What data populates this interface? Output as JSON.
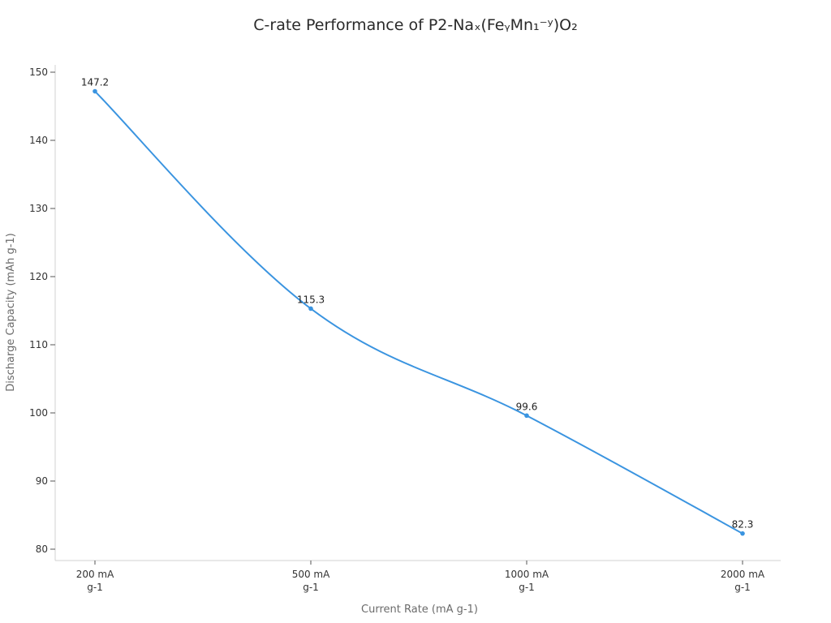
{
  "title": "C-rate Performance of P2-Naₓ(FeᵧMn₁⁻ʸ)O₂",
  "colors": {
    "line": "#3a94e0",
    "axis": "#d0d0d0",
    "tick": "#555555"
  },
  "chart_data": {
    "type": "line",
    "title": "C-rate Performance of P2-Naₓ(FeᵧMn₁⁻ʸ)O₂",
    "xlabel": "Current Rate (mA g-1)",
    "ylabel": "Discharge Capacity (mAh g-1)",
    "categories": [
      "200 mA g-1",
      "500 mA g-1",
      "1000 mA g-1",
      "2000 mA g-1"
    ],
    "category_lines": [
      [
        "200 mA",
        "g-1"
      ],
      [
        "500 mA",
        "g-1"
      ],
      [
        "1000 mA",
        "g-1"
      ],
      [
        "2000 mA",
        "g-1"
      ]
    ],
    "series": [
      {
        "name": "Discharge Capacity",
        "values": [
          147.2,
          115.3,
          99.6,
          82.3
        ]
      }
    ],
    "data_labels": [
      "147.2",
      "115.3",
      "99.6",
      "82.3"
    ],
    "yticks": [
      80,
      90,
      100,
      110,
      120,
      130,
      140,
      150
    ],
    "ylim": [
      78.3,
      151.2
    ],
    "grid": false,
    "legend": "none",
    "smooth": true
  }
}
